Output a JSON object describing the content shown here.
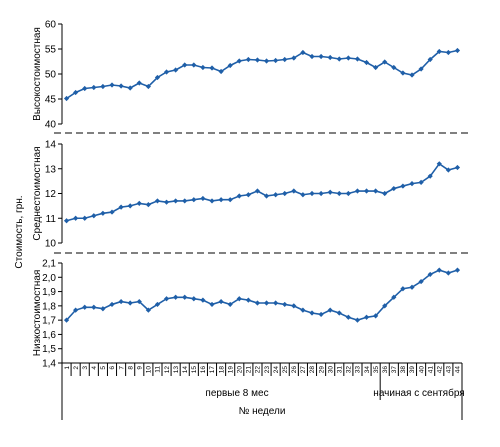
{
  "chart_data": {
    "type": "line",
    "ylabel": "Стоимость, грн.",
    "x": [
      "1",
      "2",
      "3",
      "4",
      "5",
      "6",
      "7",
      "8",
      "9",
      "10",
      "11",
      "12",
      "13",
      "14",
      "15",
      "16",
      "17",
      "18",
      "19",
      "20",
      "21",
      "22",
      "23",
      "24",
      "25",
      "26",
      "27",
      "28",
      "29",
      "30",
      "31",
      "32",
      "33",
      "34",
      "35",
      "36",
      "37",
      "38",
      "39",
      "40",
      "41",
      "42",
      "43",
      "44"
    ],
    "xgroups": [
      {
        "label": "первые 8 мес",
        "from": 1,
        "to": 35
      },
      {
        "label": "начиная с сентября",
        "from": 36,
        "to": 44
      }
    ],
    "xlabel": "№ недели",
    "panels": [
      {
        "name": "Высокостоимостная",
        "ylim": [
          40,
          60
        ],
        "yticks": [
          "40",
          "45",
          "50",
          "55",
          "60"
        ],
        "values": [
          45.1,
          46.3,
          47.1,
          47.3,
          47.5,
          47.8,
          47.6,
          47.2,
          48.2,
          47.5,
          49.3,
          50.4,
          50.8,
          51.8,
          51.8,
          51.3,
          51.2,
          50.5,
          51.7,
          52.6,
          52.9,
          52.8,
          52.6,
          52.7,
          52.9,
          53.2,
          54.3,
          53.5,
          53.5,
          53.3,
          53.0,
          53.2,
          53.0,
          52.3,
          51.3,
          52.4,
          51.3,
          50.2,
          49.8,
          51.0,
          52.9,
          54.5,
          54.3,
          54.7
        ]
      },
      {
        "name": "Среднестоимостная",
        "ylim": [
          10,
          14
        ],
        "yticks": [
          "10",
          "11",
          "12",
          "13",
          "14"
        ],
        "values": [
          10.9,
          11.0,
          11.0,
          11.1,
          11.2,
          11.25,
          11.45,
          11.5,
          11.6,
          11.55,
          11.7,
          11.65,
          11.7,
          11.7,
          11.75,
          11.8,
          11.7,
          11.75,
          11.75,
          11.9,
          11.95,
          12.1,
          11.9,
          11.95,
          12.0,
          12.1,
          11.95,
          12.0,
          12.0,
          12.05,
          12.0,
          12.0,
          12.1,
          12.1,
          12.1,
          12.0,
          12.2,
          12.3,
          12.4,
          12.45,
          12.7,
          13.2,
          12.95,
          13.05
        ]
      },
      {
        "name": "Низкостоимостная",
        "ylim": [
          1.4,
          2.1
        ],
        "yticks": [
          "1,4",
          "1,5",
          "1,6",
          "1,7",
          "1,8",
          "1,9",
          "2,0",
          "2,1"
        ],
        "values": [
          1.7,
          1.77,
          1.79,
          1.79,
          1.78,
          1.81,
          1.83,
          1.82,
          1.83,
          1.77,
          1.81,
          1.85,
          1.86,
          1.86,
          1.85,
          1.84,
          1.81,
          1.83,
          1.81,
          1.85,
          1.84,
          1.82,
          1.82,
          1.82,
          1.81,
          1.8,
          1.77,
          1.75,
          1.74,
          1.77,
          1.75,
          1.72,
          1.7,
          1.72,
          1.73,
          1.8,
          1.86,
          1.92,
          1.93,
          1.97,
          2.02,
          2.05,
          2.03,
          2.05
        ]
      }
    ]
  }
}
